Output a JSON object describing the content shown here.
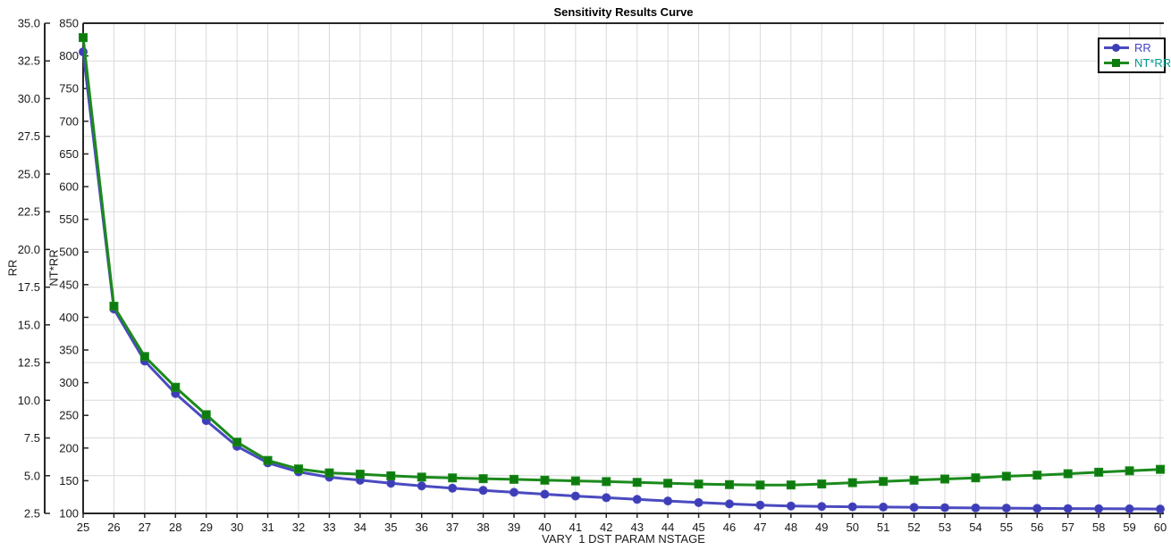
{
  "title": "Sensitivity Results Curve",
  "colors": {
    "background": "#ffffff",
    "grid": "#d9d9d9",
    "axis": "#262626",
    "tick_text": "#1a1a1a",
    "legend_border": "#000000",
    "rr_line": "#4a4ac1",
    "nt_line": "#1c8a1c"
  },
  "chart_data": {
    "type": "line",
    "title": "Sensitivity Results Curve",
    "grid": true,
    "legend_position": "top-right",
    "x_axis": {
      "label": "VARY  1 DST PARAM NSTAGE",
      "min": 25,
      "max": 60,
      "ticks": [
        25,
        26,
        27,
        28,
        29,
        30,
        31,
        32,
        33,
        34,
        35,
        36,
        37,
        38,
        39,
        40,
        41,
        42,
        43,
        44,
        45,
        46,
        47,
        48,
        49,
        50,
        51,
        52,
        53,
        54,
        55,
        56,
        57,
        58,
        59,
        60
      ]
    },
    "axes": {
      "rr": {
        "label": "RR",
        "min": 2.5,
        "max": 35.0,
        "tick_decimals": 1,
        "ticks": [
          2.5,
          5.0,
          7.5,
          10.0,
          12.5,
          15.0,
          17.5,
          20.0,
          22.5,
          25.0,
          27.5,
          30.0,
          32.5,
          35.0
        ]
      },
      "nt": {
        "label": "NT*RR",
        "min": 100,
        "max": 850,
        "tick_decimals": 0,
        "ticks": [
          100,
          150,
          200,
          250,
          300,
          350,
          400,
          450,
          500,
          550,
          600,
          650,
          700,
          750,
          800,
          850
        ]
      }
    },
    "x_values": [
      25,
      26,
      27,
      28,
      29,
      30,
      31,
      32,
      33,
      34,
      35,
      36,
      37,
      38,
      39,
      40,
      41,
      42,
      43,
      44,
      45,
      46,
      47,
      48,
      49,
      50,
      51,
      52,
      53,
      54,
      55,
      56,
      57,
      58,
      59,
      60
    ],
    "series": [
      {
        "name": "RR",
        "axis": "rr",
        "marker": "circle",
        "line_color": "#4a4ac1",
        "marker_color": "#3d3db8",
        "legend_text_color": "#4343c6",
        "values": [
          33.1,
          16.05,
          12.6,
          10.45,
          8.65,
          6.95,
          5.85,
          5.25,
          4.9,
          4.7,
          4.5,
          4.32,
          4.17,
          4.03,
          3.9,
          3.77,
          3.65,
          3.54,
          3.43,
          3.32,
          3.22,
          3.13,
          3.05,
          2.99,
          2.96,
          2.94,
          2.92,
          2.9,
          2.88,
          2.86,
          2.85,
          2.83,
          2.82,
          2.81,
          2.8,
          2.79
        ]
      },
      {
        "name": "NT*RR",
        "axis": "nt",
        "marker": "square",
        "line_color": "#1c8a1c",
        "marker_color": "#0e7b0e",
        "legend_text_color": "#009a8e",
        "values": [
          828,
          417,
          340,
          293,
          251,
          209,
          181,
          168,
          162,
          160,
          157.5,
          155.5,
          154.3,
          153.1,
          152.1,
          150.8,
          149.7,
          148.7,
          147.5,
          146.1,
          144.9,
          144,
          143.4,
          143.5,
          145,
          147,
          148.9,
          150.8,
          152.6,
          154.4,
          156.8,
          158.5,
          160.7,
          163,
          165.2,
          167.4
        ]
      }
    ]
  }
}
